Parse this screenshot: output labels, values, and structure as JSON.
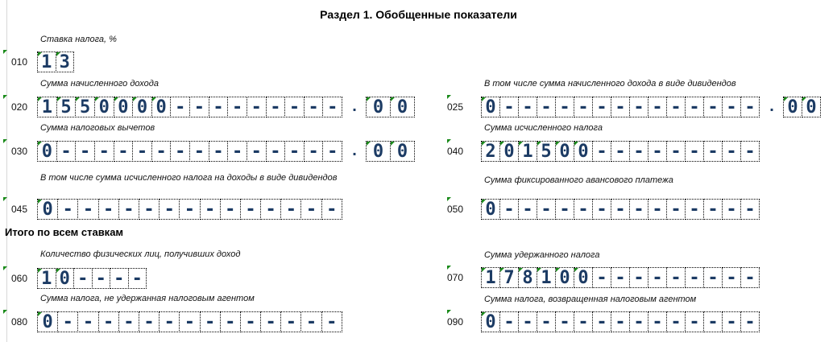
{
  "title": "Раздел 1. Обобщенные показатели",
  "subtitle": "Итого по всем ставкам",
  "colors": {
    "digits": "#1c3b64",
    "corner_marker": "#1a8a1a"
  },
  "fields": [
    {
      "code": "010",
      "label": "Ставка налога, %",
      "cells": [
        "1",
        "3"
      ]
    },
    {
      "code": "020",
      "label": "Сумма начисленного дохода",
      "cells": [
        "1",
        "5",
        "5",
        "0",
        "0",
        "0",
        "0",
        "-",
        "-",
        "-",
        "-",
        "-",
        "-",
        "-",
        "-",
        "-"
      ],
      "decimal_sep": ".",
      "decimals": [
        "0",
        "0"
      ]
    },
    {
      "code": "025",
      "label": "В том числе сумма начисленного дохода в виде дивидендов",
      "cells": [
        "0",
        "-",
        "-",
        "-",
        "-",
        "-",
        "-",
        "-",
        "-",
        "-",
        "-",
        "-",
        "-",
        "-",
        "-"
      ],
      "decimal_sep": ".",
      "decimals": [
        "0",
        "0"
      ]
    },
    {
      "code": "030",
      "label": "Сумма налоговых вычетов",
      "cells": [
        "0",
        "-",
        "-",
        "-",
        "-",
        "-",
        "-",
        "-",
        "-",
        "-",
        "-",
        "-",
        "-",
        "-",
        "-",
        "-"
      ],
      "decimal_sep": ".",
      "decimals": [
        "0",
        "0"
      ]
    },
    {
      "code": "040",
      "label": "Сумма исчисленного налога",
      "cells": [
        "2",
        "0",
        "1",
        "5",
        "0",
        "0",
        "-",
        "-",
        "-",
        "-",
        "-",
        "-",
        "-",
        "-",
        "-"
      ]
    },
    {
      "code": "045",
      "label": "В том числе сумма исчисленного налога на доходы в виде дивидендов",
      "cells": [
        "0",
        "-",
        "-",
        "-",
        "-",
        "-",
        "-",
        "-",
        "-",
        "-",
        "-",
        "-",
        "-",
        "-",
        "-"
      ]
    },
    {
      "code": "050",
      "label": "Сумма фиксированного авансового платежа",
      "cells": [
        "0",
        "-",
        "-",
        "-",
        "-",
        "-",
        "-",
        "-",
        "-",
        "-",
        "-",
        "-",
        "-",
        "-",
        "-"
      ]
    },
    {
      "code": "060",
      "label": "Количество физических лиц, получивших доход",
      "cells": [
        "1",
        "0",
        "-",
        "-",
        "-",
        "-"
      ]
    },
    {
      "code": "070",
      "label": "Сумма удержанного налога",
      "cells": [
        "1",
        "7",
        "8",
        "1",
        "0",
        "0",
        "-",
        "-",
        "-",
        "-",
        "-",
        "-",
        "-",
        "-",
        "-"
      ]
    },
    {
      "code": "080",
      "label": "Сумма налога, не удержанная налоговым агентом",
      "cells": [
        "0",
        "-",
        "-",
        "-",
        "-",
        "-",
        "-",
        "-",
        "-",
        "-",
        "-",
        "-",
        "-",
        "-",
        "-"
      ]
    },
    {
      "code": "090",
      "label": "Сумма налога, возвращенная налоговым агентом",
      "cells": [
        "0",
        "-",
        "-",
        "-",
        "-",
        "-",
        "-",
        "-",
        "-",
        "-",
        "-",
        "-",
        "-",
        "-",
        "-"
      ]
    }
  ]
}
